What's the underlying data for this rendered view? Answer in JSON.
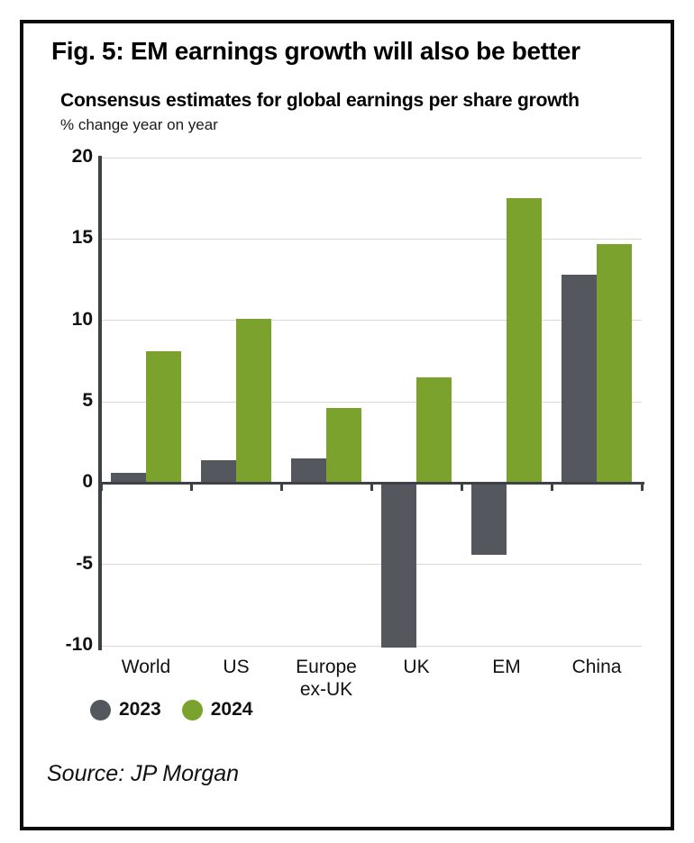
{
  "figure": {
    "title": "Fig. 5: EM earnings growth will also be better",
    "subtitle": "Consensus estimates for global earnings per share growth",
    "unit_label": "% change year on year",
    "source": "Source: JP Morgan"
  },
  "chart_data": {
    "type": "bar",
    "title": "Consensus estimates for global earnings per share growth",
    "ylabel": "% change year on year",
    "categories": [
      "World",
      "US",
      "Europe ex-UK",
      "UK",
      "EM",
      "China"
    ],
    "category_label_lines": [
      [
        "World"
      ],
      [
        "US"
      ],
      [
        "Europe",
        "ex-UK"
      ],
      [
        "UK"
      ],
      [
        "EM"
      ],
      [
        "China"
      ]
    ],
    "series": [
      {
        "name": "2023",
        "color": "#54585E",
        "values": [
          0.6,
          1.4,
          1.5,
          -10.1,
          -4.4,
          12.8
        ]
      },
      {
        "name": "2024",
        "color": "#7AA22D",
        "values": [
          8.1,
          10.1,
          4.6,
          6.5,
          17.5,
          14.7
        ]
      }
    ],
    "ylim": [
      -10,
      20
    ],
    "yticks": [
      20,
      15,
      10,
      5,
      0,
      -5,
      -10
    ],
    "grid": true,
    "legend_position": "bottom-left"
  },
  "colors": {
    "grid": "#d8d8d8",
    "axis": "#3d4146",
    "frame": "#0b0b0b",
    "background": "#ffffff"
  }
}
